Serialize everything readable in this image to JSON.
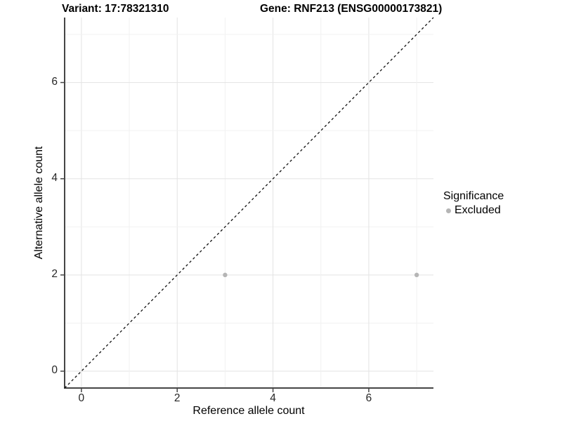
{
  "titles": {
    "variant": "Variant: 17:78321310",
    "gene": "Gene: RNF213 (ENSG00000173821)"
  },
  "chart_data": {
    "type": "scatter",
    "title_left": "Variant: 17:78321310",
    "title_right": "Gene: RNF213 (ENSG00000173821)",
    "xlabel": "Reference allele count",
    "ylabel": "Alternative allele count",
    "xlim": [
      -0.35,
      7.35
    ],
    "ylim": [
      -0.35,
      7.35
    ],
    "x_ticks": [
      0,
      2,
      4,
      6
    ],
    "y_ticks": [
      0,
      2,
      4,
      6
    ],
    "grid": "on",
    "grid_interval": 1,
    "grid_max": 7,
    "series": [
      {
        "name": "Excluded",
        "color": "#b5b5b5",
        "points": [
          {
            "x": 3,
            "y": 2
          },
          {
            "x": 7,
            "y": 2
          }
        ]
      }
    ],
    "reference_line": {
      "type": "identity y=x",
      "style": "dashed",
      "color": "#111111"
    },
    "legend": {
      "title": "Significance",
      "position": "right",
      "entries": [
        {
          "label": "Excluded",
          "color": "#b5b5b5"
        }
      ]
    }
  },
  "colors": {
    "background": "#ffffff",
    "axis_line": "#454545",
    "grid_major": "#e3e3e3",
    "grid_minor": "#f1f1f1",
    "point": "#b5b5b5",
    "reference_line": "#111111",
    "text": "#000000"
  }
}
